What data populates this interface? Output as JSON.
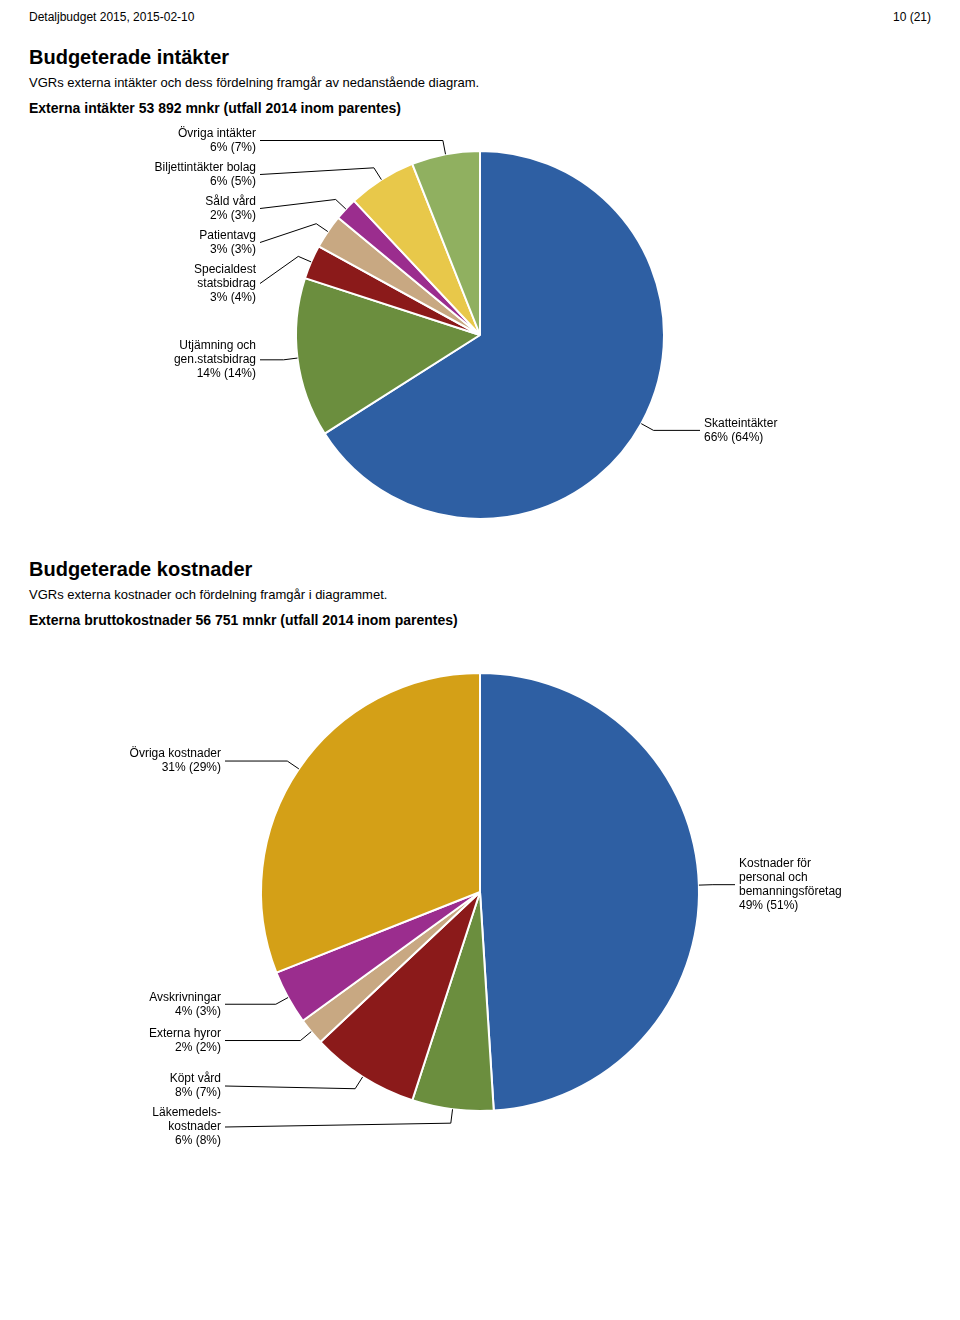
{
  "annotations": [
    "Detaljbudget 2015, 2015-02-10",
    "10 (21)"
  ],
  "chart_data": [
    {
      "type": "pie",
      "title": "Externa intäkter 53 892 mnkr (utfall 2014 inom parentes)",
      "annotations": [
        "Budgeterade intäkter",
        "VGRs externa intäkter och dess fördelning framgår av nedanstående diagram."
      ],
      "categories": [
        "Skatteintäkter",
        "Utjämning och\ngen.statsbidrag",
        "Specialdest\nstatsbidrag",
        "Patientavg",
        "Såld vård",
        "Biljettintäkter bolag",
        "Övriga intäkter"
      ],
      "values": [
        66,
        14,
        3,
        3,
        2,
        6,
        6
      ],
      "value_labels": [
        "66% (64%)",
        "14% (14%)",
        "3% (4%)",
        "3% (3%)",
        "2% (3%)",
        "6% (5%)",
        "6% (7%)"
      ],
      "colors": [
        "#2E5FA3",
        "#6B8E3E",
        "#8B1A1A",
        "#C8A882",
        "#9B2D8E",
        "#E8C84A",
        "#90B060"
      ],
      "data_labels": true
    },
    {
      "type": "pie",
      "title": "Externa bruttokostnader 56 751 mnkr (utfall 2014 inom parentes)",
      "annotations": [
        "Budgeterade kostnader",
        "VGRs externa kostnader och fördelning framgår i diagrammet."
      ],
      "categories": [
        "Kostnader för\npersonal och\nbemanningsföretag",
        "Läkemedels-\nkostnader",
        "Köpt vård",
        "Externa hyror",
        "Avskrivningar",
        "Övriga kostnader"
      ],
      "values": [
        49,
        6,
        8,
        2,
        4,
        31
      ],
      "value_labels": [
        "49% (51%)",
        "6% (8%)",
        "8% (7%)",
        "2% (2%)",
        "4% (3%)",
        "31% (29%)"
      ],
      "colors": [
        "#2E5FA3",
        "#6B8E3E",
        "#8B1A1A",
        "#C8A882",
        "#9B2D8E",
        "#D4A017"
      ],
      "data_labels": true
    }
  ]
}
